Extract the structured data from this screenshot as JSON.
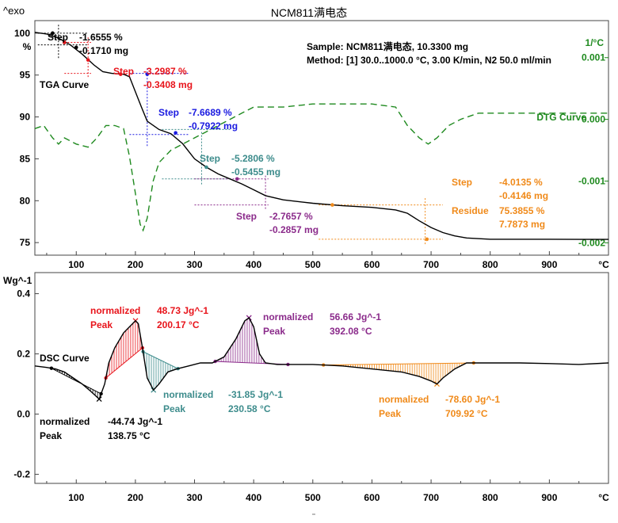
{
  "page": {
    "exo_label": "^exo",
    "title": "NCM811满电态",
    "sample_line": "Sample: NCM811满电态, 10.3300 mg",
    "method_line": "Method: [1] 30.0..1000.0 °C, 3.00 K/min, N2 50.0 ml/min"
  },
  "colors": {
    "black": "#000000",
    "red": "#e8141b",
    "blue": "#1a1ae0",
    "teal": "#3d8c8c",
    "purple": "#8b2b8b",
    "orange": "#f08a1a",
    "green": "#1f8a1f",
    "axis": "#444444"
  },
  "chart_data": [
    {
      "type": "line",
      "name": "TGA/DTG",
      "x_unit_label": "°C",
      "y_left_unit_label": "%",
      "y_right_unit_label": "1/°C",
      "xlim": [
        30,
        1000
      ],
      "ylim_left": [
        73.5,
        101.5
      ],
      "ylim_right": [
        -0.0022,
        0.0016
      ],
      "x_ticks": [
        "100",
        "200",
        "300",
        "400",
        "500",
        "600",
        "700",
        "800",
        "900"
      ],
      "y_left_ticks": [
        "100",
        "95",
        "90",
        "85",
        "80",
        "75"
      ],
      "y_right_ticks": [
        "0.001",
        "0.000",
        "-0.001",
        "-0.002"
      ],
      "tga_label": "TGA Curve",
      "dtg_label": "DTG Curve",
      "tga_curve": [
        [
          30,
          100.1
        ],
        [
          50,
          99.9
        ],
        [
          70,
          99.4
        ],
        [
          90,
          98.6
        ],
        [
          110,
          97.5
        ],
        [
          130,
          96.2
        ],
        [
          145,
          95.4
        ],
        [
          160,
          95.2
        ],
        [
          180,
          95.1
        ],
        [
          190,
          94.8
        ],
        [
          200,
          93.0
        ],
        [
          210,
          91.2
        ],
        [
          220,
          89.5
        ],
        [
          240,
          88.5
        ],
        [
          260,
          88.0
        ],
        [
          280,
          86.8
        ],
        [
          300,
          85.0
        ],
        [
          320,
          84.0
        ],
        [
          340,
          83.2
        ],
        [
          360,
          82.6
        ],
        [
          380,
          82.0
        ],
        [
          400,
          81.3
        ],
        [
          420,
          80.6
        ],
        [
          450,
          80.1
        ],
        [
          500,
          79.7
        ],
        [
          550,
          79.4
        ],
        [
          600,
          79.2
        ],
        [
          640,
          78.9
        ],
        [
          660,
          78.5
        ],
        [
          680,
          77.6
        ],
        [
          700,
          76.8
        ],
        [
          720,
          76.2
        ],
        [
          740,
          75.8
        ],
        [
          760,
          75.55
        ],
        [
          800,
          75.4
        ],
        [
          850,
          75.4
        ],
        [
          900,
          75.4
        ],
        [
          950,
          75.38
        ],
        [
          1000,
          75.38
        ]
      ],
      "dtg_curve": [
        [
          30,
          -0.00015
        ],
        [
          45,
          -0.0001
        ],
        [
          60,
          -0.0003
        ],
        [
          70,
          -0.0004
        ],
        [
          80,
          -0.0003
        ],
        [
          100,
          -0.0004
        ],
        [
          120,
          -0.00045
        ],
        [
          135,
          -0.0003
        ],
        [
          150,
          -0.0001
        ],
        [
          165,
          -0.0001
        ],
        [
          180,
          -0.00015
        ],
        [
          190,
          -0.0006
        ],
        [
          200,
          -0.0012
        ],
        [
          208,
          -0.0017
        ],
        [
          213,
          -0.0018
        ],
        [
          220,
          -0.0016
        ],
        [
          230,
          -0.001
        ],
        [
          240,
          -0.0007
        ],
        [
          260,
          -0.0005
        ],
        [
          280,
          -0.0004
        ],
        [
          300,
          -0.0003
        ],
        [
          320,
          -0.0002
        ],
        [
          340,
          -0.0001
        ],
        [
          360,
          0.0
        ],
        [
          380,
          0.0001
        ],
        [
          400,
          0.0002
        ],
        [
          450,
          0.0002
        ],
        [
          500,
          0.00025
        ],
        [
          550,
          0.00025
        ],
        [
          600,
          0.00025
        ],
        [
          640,
          0.0002
        ],
        [
          660,
          -0.0001
        ],
        [
          680,
          -0.0003
        ],
        [
          695,
          -0.0004
        ],
        [
          710,
          -0.0003
        ],
        [
          730,
          -0.0001
        ],
        [
          750,
          0.0
        ],
        [
          780,
          0.0001
        ],
        [
          850,
          0.0001
        ],
        [
          900,
          0.0001
        ],
        [
          950,
          0.0001
        ],
        [
          1000,
          0.0001
        ]
      ],
      "steps": [
        {
          "line1": "Step",
          "pct": "-1.6555 %",
          "mass": "-0.1710 mg",
          "color": "black"
        },
        {
          "line1": "Step",
          "pct": "-3.2987 %",
          "mass": "-0.3408 mg",
          "color": "red"
        },
        {
          "line1": "Step",
          "pct": "-7.6689 %",
          "mass": "-0.7922 mg",
          "color": "blue"
        },
        {
          "line1": "Step",
          "pct": "-5.2806 %",
          "mass": "-0.5455 mg",
          "color": "teal"
        },
        {
          "line1": "Step",
          "pct": "-2.7657 %",
          "mass": "-0.2857 mg",
          "color": "purple"
        },
        {
          "line1": "Step",
          "pct": "-4.0135 %",
          "mass": "-0.4146 mg",
          "color": "orange",
          "residue_label": "Residue",
          "residue_pct": "75.3855 %",
          "residue_mass": "7.7873 mg"
        }
      ],
      "step_markers": [
        {
          "x": 60,
          "y": 100.0,
          "color": "black"
        },
        {
          "x": 80,
          "y": 98.9,
          "color": "black"
        },
        {
          "x": 100,
          "y": 98.3,
          "color": "black"
        },
        {
          "x": 80,
          "y": 98.9,
          "color": "red"
        },
        {
          "x": 120,
          "y": 96.8,
          "color": "red"
        },
        {
          "x": 175,
          "y": 95.1,
          "color": "red"
        },
        {
          "x": 220,
          "y": 95.1,
          "color": "blue"
        },
        {
          "x": 268,
          "y": 88.1,
          "color": "blue"
        },
        {
          "x": 320,
          "y": 84.0,
          "color": "teal"
        },
        {
          "x": 372,
          "y": 82.6,
          "color": "purple"
        },
        {
          "x": 533,
          "y": 79.5,
          "color": "orange"
        },
        {
          "x": 693,
          "y": 75.4,
          "color": "orange"
        }
      ]
    },
    {
      "type": "line",
      "name": "DSC",
      "x_unit_label": "°C",
      "y_unit_label": "Wg^-1",
      "xlim": [
        30,
        1000
      ],
      "ylim": [
        -0.23,
        0.47
      ],
      "x_ticks": [
        "100",
        "200",
        "300",
        "400",
        "500",
        "600",
        "700",
        "800",
        "900"
      ],
      "y_ticks": [
        "0.4",
        "0.2",
        "0.0",
        "-0.2"
      ],
      "dsc_label": "DSC Curve",
      "dsc_curve": [
        [
          30,
          0.16
        ],
        [
          50,
          0.155
        ],
        [
          65,
          0.15
        ],
        [
          80,
          0.14
        ],
        [
          95,
          0.12
        ],
        [
          110,
          0.1
        ],
        [
          125,
          0.075
        ],
        [
          138.75,
          0.05
        ],
        [
          148,
          0.1
        ],
        [
          155,
          0.17
        ],
        [
          165,
          0.22
        ],
        [
          180,
          0.27
        ],
        [
          200.17,
          0.31
        ],
        [
          205,
          0.3
        ],
        [
          212,
          0.22
        ],
        [
          220,
          0.12
        ],
        [
          230.58,
          0.08
        ],
        [
          240,
          0.1
        ],
        [
          255,
          0.14
        ],
        [
          270,
          0.15
        ],
        [
          290,
          0.16
        ],
        [
          310,
          0.17
        ],
        [
          330,
          0.17
        ],
        [
          350,
          0.19
        ],
        [
          370,
          0.25
        ],
        [
          385,
          0.31
        ],
        [
          392.08,
          0.32
        ],
        [
          400,
          0.29
        ],
        [
          410,
          0.2
        ],
        [
          420,
          0.17
        ],
        [
          440,
          0.165
        ],
        [
          460,
          0.165
        ],
        [
          500,
          0.165
        ],
        [
          550,
          0.16
        ],
        [
          600,
          0.15
        ],
        [
          650,
          0.14
        ],
        [
          680,
          0.125
        ],
        [
          700,
          0.11
        ],
        [
          709.92,
          0.1
        ],
        [
          720,
          0.12
        ],
        [
          740,
          0.15
        ],
        [
          760,
          0.17
        ],
        [
          780,
          0.17
        ],
        [
          800,
          0.17
        ],
        [
          850,
          0.17
        ],
        [
          900,
          0.168
        ],
        [
          950,
          0.165
        ],
        [
          1000,
          0.17
        ]
      ],
      "peaks": [
        {
          "label1": "normalized",
          "label2": "Peak",
          "value": "-44.74 Jg^-1",
          "temp": "138.75 °C",
          "color": "black",
          "x1": 58,
          "x2": 142,
          "peak_x": 138.75
        },
        {
          "label1": "normalized",
          "label2": "Peak",
          "value": "48.73 Jg^-1",
          "temp": "200.17 °C",
          "color": "red",
          "x1": 150,
          "x2": 212,
          "peak_x": 200.17
        },
        {
          "label1": "normalized",
          "label2": "Peak",
          "value": "-31.85 Jg^-1",
          "temp": "230.58 °C",
          "color": "teal",
          "x1": 213,
          "x2": 272,
          "peak_x": 230.58
        },
        {
          "label1": "normalized",
          "label2": "Peak",
          "value": "56.66 Jg^-1",
          "temp": "392.08 °C",
          "color": "purple",
          "x1": 335,
          "x2": 458,
          "peak_x": 392.08
        },
        {
          "label1": "normalized",
          "label2": "Peak",
          "value": "-78.60 Jg^-1",
          "temp": "709.92 °C",
          "color": "orange",
          "x1": 518,
          "x2": 772,
          "peak_x": 709.92
        }
      ]
    }
  ]
}
